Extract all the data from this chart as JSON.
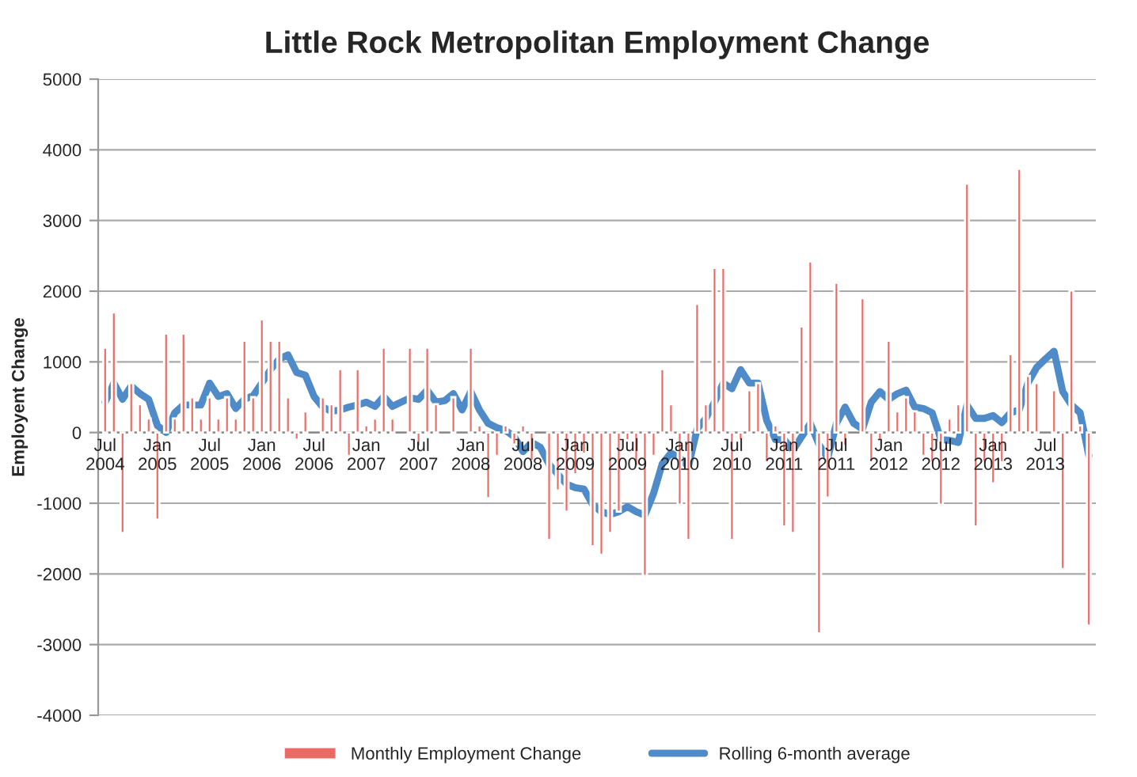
{
  "chart_data": {
    "type": "bar",
    "title": "Little Rock Metropolitan Employment Change",
    "ylabel": "Employent Change",
    "categories": [
      "Jul\n2004",
      null,
      null,
      null,
      null,
      null,
      "Jan\n2005",
      null,
      null,
      null,
      null,
      null,
      "Jul\n2005",
      null,
      null,
      null,
      null,
      null,
      "Jan\n2006",
      null,
      null,
      null,
      null,
      null,
      "Jul\n2006",
      null,
      null,
      null,
      null,
      null,
      "Jan\n2007",
      null,
      null,
      null,
      null,
      null,
      "Jul\n2007",
      null,
      null,
      null,
      null,
      null,
      "Jan\n2008",
      null,
      null,
      null,
      null,
      null,
      "Jul\n2008",
      null,
      null,
      null,
      null,
      null,
      "Jan\n2009",
      null,
      null,
      null,
      null,
      null,
      "Jul\n2009",
      null,
      null,
      null,
      null,
      null,
      "Jan\n2010",
      null,
      null,
      null,
      null,
      null,
      "Jul\n2010",
      null,
      null,
      null,
      null,
      null,
      "Jan\n2011",
      null,
      null,
      null,
      null,
      null,
      "Jul\n2011",
      null,
      null,
      null,
      null,
      null,
      "Jan\n2012",
      null,
      null,
      null,
      null,
      null,
      "Jul\n2012",
      null,
      null,
      null,
      null,
      null,
      "Jan\n2013",
      null,
      null,
      null,
      null,
      null,
      "Jul\n2013",
      null,
      null,
      null,
      null,
      null
    ],
    "series": [
      {
        "name": "Monthly Employment Change",
        "color": "#ea6b66",
        "values": [
          1200,
          1700,
          -1420,
          700,
          400,
          200,
          -1230,
          1400,
          200,
          1400,
          500,
          200,
          500,
          200,
          500,
          200,
          1300,
          500,
          1600,
          1300,
          1300,
          500,
          -100,
          300,
          null,
          500,
          400,
          900,
          -330,
          900,
          100,
          200,
          1200,
          200,
          null,
          1200,
          -200,
          1200,
          400,
          null,
          500,
          null,
          1200,
          100,
          -930,
          -330,
          100,
          -170,
          100,
          -400,
          null,
          -1520,
          -820,
          -1120,
          -590,
          -300,
          -1610,
          -1730,
          -1420,
          -1120,
          -110,
          -480,
          -2030,
          -330,
          900,
          400,
          -1020,
          -1520,
          1820,
          400,
          2330,
          2330,
          -1520,
          -110,
          600,
          700,
          -420,
          100,
          -1330,
          -1420,
          1500,
          2420,
          -2840,
          -920,
          2120,
          -190,
          null,
          1900,
          -420,
          -110,
          1300,
          300,
          500,
          300,
          -330,
          -420,
          -1020,
          200,
          400,
          3520,
          -1330,
          -420,
          -720,
          -420,
          1110,
          3730,
          800,
          700,
          null,
          600,
          -1930,
          2010,
          100,
          -2730
        ]
      },
      {
        "name": "Rolling 6-month average",
        "type": "line",
        "color": "#4f8ac9",
        "values": [
          430,
          700,
          470,
          660,
          550,
          470,
          100,
          0,
          280,
          390,
          390,
          390,
          700,
          510,
          550,
          340,
          470,
          520,
          700,
          890,
          1040,
          1100,
          850,
          810,
          510,
          360,
          300,
          320,
          360,
          390,
          430,
          370,
          510,
          370,
          430,
          490,
          470,
          600,
          430,
          450,
          550,
          320,
          580,
          320,
          130,
          70,
          30,
          -60,
          -270,
          -140,
          -210,
          -450,
          -590,
          -730,
          -780,
          -800,
          -1020,
          -1120,
          -1160,
          -1120,
          -1050,
          -1120,
          -1170,
          -860,
          -440,
          -290,
          -360,
          -480,
          50,
          200,
          430,
          700,
          620,
          890,
          700,
          700,
          170,
          -100,
          -100,
          -250,
          -60,
          130,
          -170,
          -360,
          130,
          360,
          130,
          50,
          430,
          580,
          470,
          550,
          600,
          360,
          340,
          280,
          -100,
          -110,
          -140,
          390,
          200,
          200,
          240,
          140,
          280,
          320,
          700,
          920,
          1040,
          1150,
          580,
          390,
          280,
          -330
        ]
      }
    ],
    "ylim": [
      -4000,
      5000
    ],
    "yticks": [
      -4000,
      -3000,
      -2000,
      -1000,
      0,
      1000,
      2000,
      3000,
      4000,
      5000
    ],
    "grid": "y",
    "legend": "bottom"
  }
}
